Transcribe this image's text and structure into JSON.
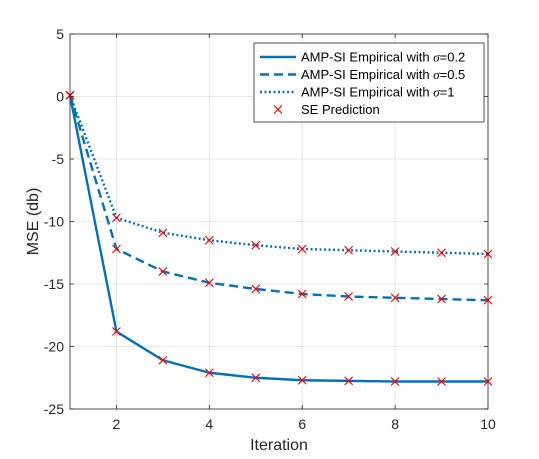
{
  "chart_data": {
    "type": "line",
    "xlabel": "Iteration",
    "ylabel": "MSE (db)",
    "xlim": [
      1,
      10
    ],
    "ylim": [
      -25,
      5
    ],
    "xticks": [
      2,
      4,
      6,
      8,
      10
    ],
    "yticks": [
      5,
      0,
      -5,
      -10,
      -15,
      -20,
      -25
    ],
    "grid": true,
    "legend_position": "top-right",
    "x": [
      1,
      2,
      3,
      4,
      5,
      6,
      7,
      8,
      9,
      10
    ],
    "series": [
      {
        "name": "AMP-SI Empirical with σ=0.2",
        "legend": {
          "prefix": "AMP-SI Empirical with ",
          "symbol": "σ",
          "suffix": "=0.2"
        },
        "style": "solid",
        "color": "#0072BD",
        "values": [
          0.1,
          -18.8,
          -21.1,
          -22.1,
          -22.5,
          -22.7,
          -22.75,
          -22.8,
          -22.8,
          -22.8
        ]
      },
      {
        "name": "AMP-SI Empirical with σ=0.5",
        "legend": {
          "prefix": "AMP-SI Empirical with ",
          "symbol": "σ",
          "suffix": "=0.5"
        },
        "style": "dashed",
        "color": "#0072BD",
        "values": [
          0.1,
          -12.2,
          -14.0,
          -14.9,
          -15.4,
          -15.8,
          -16.0,
          -16.1,
          -16.2,
          -16.3
        ]
      },
      {
        "name": "AMP-SI Empirical with σ=1",
        "legend": {
          "prefix": "AMP-SI Empirical with ",
          "symbol": "σ",
          "suffix": "=1"
        },
        "style": "dotted",
        "color": "#0072BD",
        "values": [
          0.1,
          -9.7,
          -10.9,
          -11.5,
          -11.9,
          -12.2,
          -12.3,
          -12.4,
          -12.5,
          -12.6
        ]
      }
    ],
    "markers": {
      "name": "SE Prediction",
      "marker": "x",
      "color": "#FF0000",
      "series_values": [
        [
          0.1,
          -18.8,
          -21.1,
          -22.1,
          -22.5,
          -22.7,
          -22.75,
          -22.8,
          -22.8,
          -22.8
        ],
        [
          0.1,
          -12.2,
          -14.0,
          -14.9,
          -15.4,
          -15.8,
          -16.0,
          -16.1,
          -16.2,
          -16.3
        ],
        [
          0.1,
          -9.7,
          -10.9,
          -11.5,
          -11.9,
          -12.2,
          -12.3,
          -12.4,
          -12.5,
          -12.6
        ]
      ]
    }
  }
}
